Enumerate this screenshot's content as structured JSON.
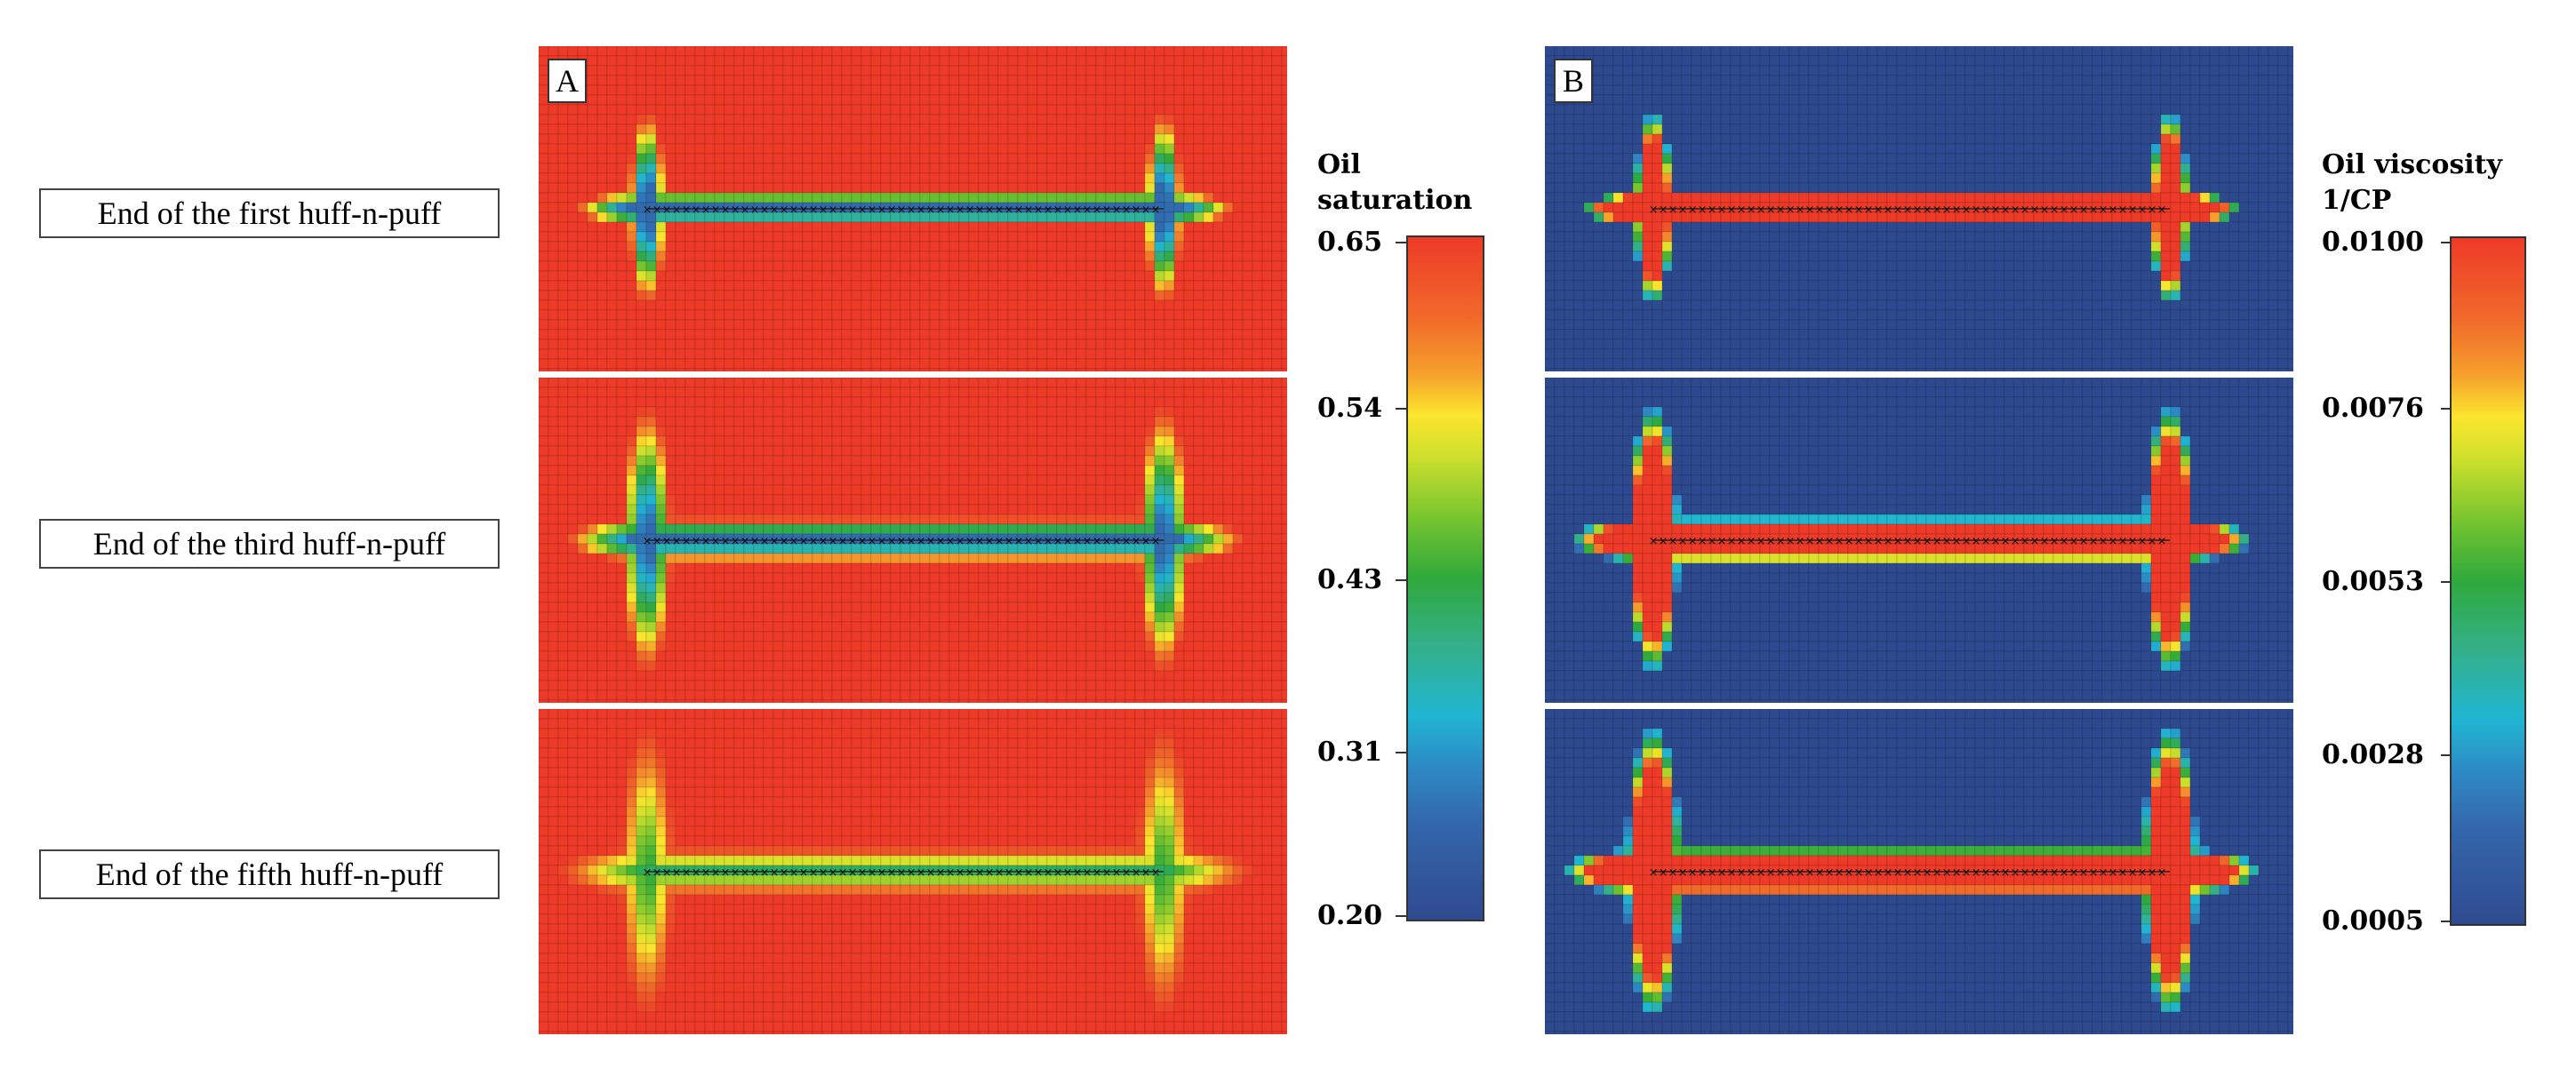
{
  "figure": {
    "row_labels": [
      "End of the first huff-n-puff",
      "End of the third huff-n-puff",
      "End of the fifth huff-n-puff"
    ]
  },
  "chart_data": [
    {
      "type": "heatmap",
      "panel": "A",
      "colorbar_title": [
        "Oil",
        "saturation"
      ],
      "colorbar_ticks": [
        "0.65",
        "0.54",
        "0.43",
        "0.31",
        "0.20"
      ],
      "range": [
        0.2,
        0.65
      ],
      "background_value": 0.65,
      "min_value_near_wells": 0.22,
      "rows": [
        "End of the first huff-n-puff",
        "End of the third huff-n-puff",
        "End of the fifth huff-n-puff"
      ],
      "colors": {
        "background": "#ee3a28",
        "min": "#2b4a8f",
        "grid": "#000000"
      }
    },
    {
      "type": "heatmap",
      "panel": "B",
      "colorbar_title": [
        "Oil viscosity",
        "1/CP"
      ],
      "colorbar_ticks": [
        "0.0100",
        "0.0076",
        "0.0053",
        "0.0028",
        "0.0005"
      ],
      "range": [
        0.0005,
        0.01
      ],
      "background_value": 0.0005,
      "max_value_in_fracture": 0.01,
      "rows": [
        "End of the first huff-n-puff",
        "End of the third huff-n-puff",
        "End of the fifth huff-n-puff"
      ],
      "colors": {
        "background": "#2c4a90",
        "max": "#ee3a28",
        "grid": "#000000"
      }
    }
  ]
}
